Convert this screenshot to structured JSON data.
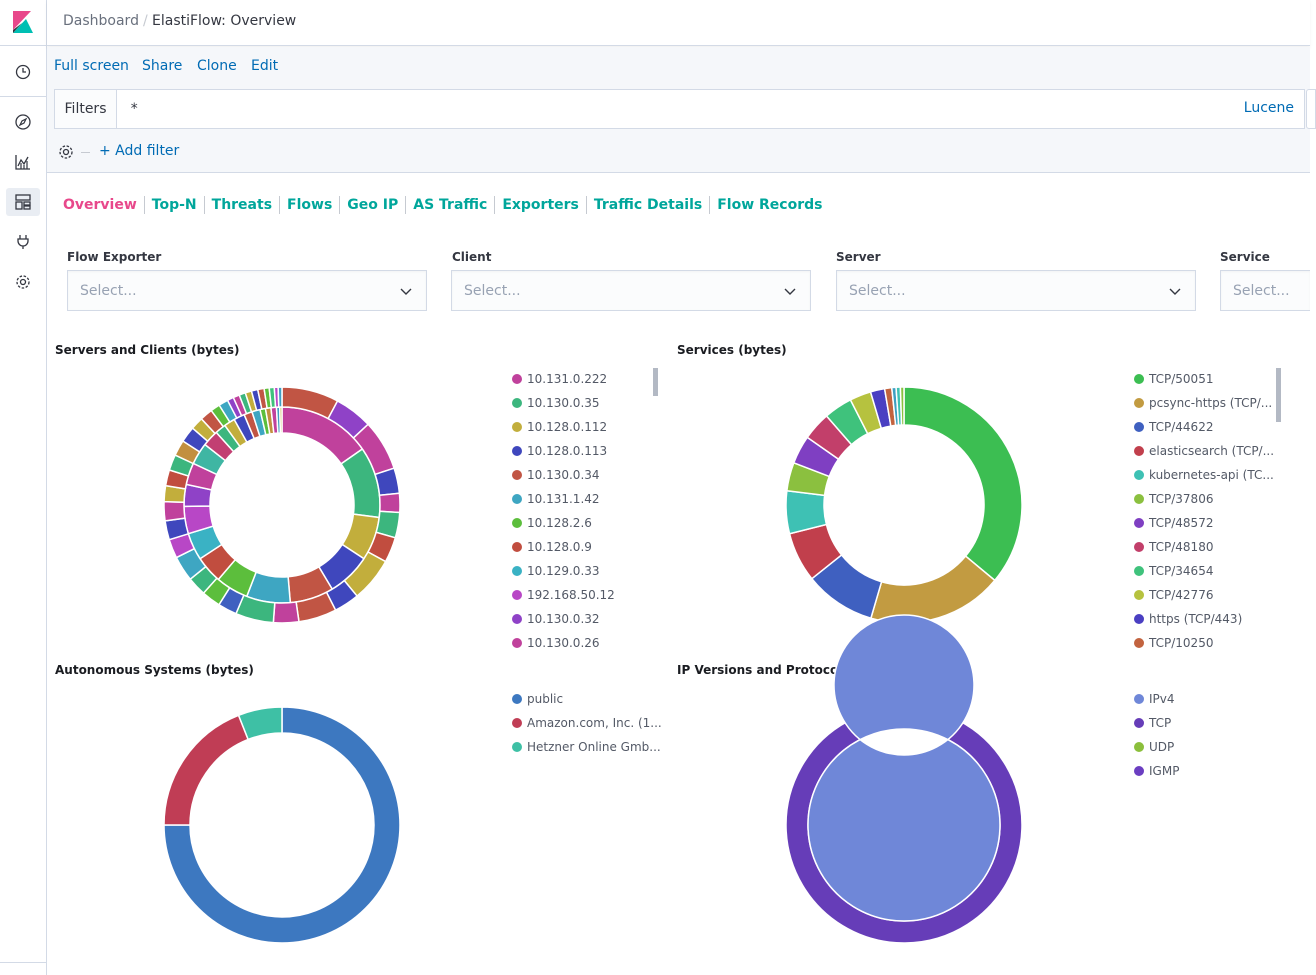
{
  "header": {
    "breadcrumb_root": "Dashboard",
    "breadcrumb_sep": "/",
    "breadcrumb_page": "ElastiFlow: Overview"
  },
  "nav_icons": [
    "clock-icon",
    "compass-icon",
    "visualize-icon",
    "dashboard-icon",
    "devtools-icon",
    "gear-icon"
  ],
  "menu": {
    "full_screen": "Full screen",
    "share": "Share",
    "clone": "Clone",
    "edit": "Edit"
  },
  "query": {
    "filters_label": "Filters",
    "value": "*",
    "language": "Lucene",
    "add_filter": "+ Add filter"
  },
  "tabs": [
    "Overview",
    "Top-N",
    "Threats",
    "Flows",
    "Geo IP",
    "AS Traffic",
    "Exporters",
    "Traffic Details",
    "Flow Records"
  ],
  "active_tab": "Overview",
  "colors": {
    "tab_active": "#e8488b",
    "tab": "#00a69b",
    "link": "#006bb4"
  },
  "controls": [
    {
      "label": "Flow Exporter",
      "placeholder": "Select..."
    },
    {
      "label": "Client",
      "placeholder": "Select..."
    },
    {
      "label": "Server",
      "placeholder": "Select..."
    },
    {
      "label": "Service",
      "placeholder": "Select..."
    }
  ],
  "panels": {
    "servers_clients": {
      "title": "Servers and Clients (bytes)",
      "legend": [
        {
          "label": "10.131.0.222",
          "color": "#c0419c"
        },
        {
          "label": "10.130.0.35",
          "color": "#3cb67e"
        },
        {
          "label": "10.128.0.112",
          "color": "#c2ae3c"
        },
        {
          "label": "10.128.0.113",
          "color": "#3f47bd"
        },
        {
          "label": "10.130.0.34",
          "color": "#c15544"
        },
        {
          "label": "10.131.1.42",
          "color": "#3ea6c2"
        },
        {
          "label": "10.128.2.6",
          "color": "#5cbe3c"
        },
        {
          "label": "10.128.0.9",
          "color": "#c14d3f"
        },
        {
          "label": "10.129.0.33",
          "color": "#3ab2c4"
        },
        {
          "label": "192.168.50.12",
          "color": "#b847c6"
        },
        {
          "label": "10.130.0.32",
          "color": "#8f42c7"
        },
        {
          "label": "10.130.0.26",
          "color": "#c0419c"
        }
      ]
    },
    "services": {
      "title": "Services (bytes)",
      "legend": [
        {
          "label": "TCP/50051",
          "color": "#3cbe52"
        },
        {
          "label": "pcsync-https (TCP/...",
          "color": "#c29b41"
        },
        {
          "label": "TCP/44622",
          "color": "#3f60c0"
        },
        {
          "label": "elasticsearch (TCP/...",
          "color": "#c13f4c"
        },
        {
          "label": "kubernetes-api (TC...",
          "color": "#3ec1b4"
        },
        {
          "label": "TCP/37806",
          "color": "#8bc03f"
        },
        {
          "label": "TCP/48572",
          "color": "#7f3fc2"
        },
        {
          "label": "TCP/48180",
          "color": "#c23f6a"
        },
        {
          "label": "TCP/34654",
          "color": "#3fc27c"
        },
        {
          "label": "TCP/42776",
          "color": "#b6c23f"
        },
        {
          "label": "https (TCP/443)",
          "color": "#4a3fc2"
        },
        {
          "label": "TCP/10250",
          "color": "#c2633f"
        }
      ]
    },
    "as": {
      "title": "Autonomous Systems (bytes)",
      "legend": [
        {
          "label": "public",
          "color": "#3d78c0"
        },
        {
          "label": "Amazon.com, Inc. (1...",
          "color": "#c03d55"
        },
        {
          "label": "Hetzner Online Gmb...",
          "color": "#3ec0a5"
        }
      ]
    },
    "ipver": {
      "title": "IP Versions and Protocols (bytes)",
      "legend": [
        {
          "label": "IPv4",
          "color": "#6f87d8"
        },
        {
          "label": "TCP",
          "color": "#663db8"
        },
        {
          "label": "UDP",
          "color": "#8bbf3c"
        },
        {
          "label": "IGMP",
          "color": "#6b3ec1"
        }
      ]
    }
  },
  "chart_data": [
    {
      "type": "pie",
      "title": "Servers and Clients (bytes)",
      "rings": [
        {
          "name": "inner",
          "values": [
            17,
            13,
            8,
            8,
            8,
            8,
            6,
            5,
            5,
            5,
            4,
            4,
            4,
            3,
            2,
            2,
            2,
            1.5,
            1.5,
            1,
            1,
            1,
            0.6,
            0.4
          ],
          "colors": [
            "#c0419c",
            "#3cb67e",
            "#c2ae3c",
            "#3f47bd",
            "#c15544",
            "#3ea6c2",
            "#5cbe3c",
            "#c14d3f",
            "#3ab2c4",
            "#b847c6",
            "#8f42c7",
            "#c0419c",
            "#3fb6a3",
            "#c23f72",
            "#3cb67e",
            "#c2ae3c",
            "#3f47bd",
            "#c15544",
            "#3ea6c2",
            "#5cbe3c",
            "#c28f3f",
            "#c0419c",
            "#3f9fc2",
            "#c2ae3c"
          ]
        },
        {
          "name": "outer",
          "values": [
            9,
            6,
            8,
            4,
            3,
            4,
            4,
            7,
            4,
            6,
            4,
            6,
            3,
            3,
            3,
            4,
            3,
            3,
            3,
            2.5,
            2.5,
            2.5,
            2.5,
            2.5,
            2,
            2,
            1.5,
            1.5,
            1,
            1,
            1,
            1,
            1,
            1,
            0.8,
            0.8,
            0.6,
            0.6
          ],
          "colors": [
            "#c15544",
            "#8f42c7",
            "#c0419c",
            "#3f47bd",
            "#c0419c",
            "#3cb67e",
            "#c14d3f",
            "#c2ae3c",
            "#3f47bd",
            "#c15544",
            "#c0419c",
            "#3cb67e",
            "#3f60c0",
            "#5cbe3c",
            "#3cb67e",
            "#3ea6c2",
            "#b847c6",
            "#3f47bd",
            "#c0419c",
            "#c2ae3c",
            "#c14d3f",
            "#3cb67e",
            "#c28f3f",
            "#3f47bd",
            "#c2ae3c",
            "#c15544",
            "#5cbe3c",
            "#3ea6c2",
            "#8f42c7",
            "#c0419c",
            "#3cb67e",
            "#c2ae3c",
            "#3f47bd",
            "#c15544",
            "#5cbe3c",
            "#3fc27c",
            "#b847c6",
            "#3f9fc2"
          ]
        }
      ]
    },
    {
      "type": "pie",
      "title": "Services (bytes)",
      "values": [
        37,
        19,
        10,
        7,
        6,
        4,
        4,
        4,
        4,
        3,
        2,
        1,
        0.6,
        0.6,
        0.5
      ],
      "colors": [
        "#3cbe52",
        "#c29b41",
        "#3f60c0",
        "#c13f4c",
        "#3ec1b4",
        "#8bc03f",
        "#7f3fc2",
        "#c23f6a",
        "#3fc27c",
        "#b6c23f",
        "#4a3fc2",
        "#c2633f",
        "#3f9fc2",
        "#3ec1b4",
        "#8bc03f"
      ]
    },
    {
      "type": "pie",
      "title": "Autonomous Systems (bytes)",
      "values": [
        75,
        19,
        6
      ],
      "colors": [
        "#3d78c0",
        "#c03d55",
        "#3ec0a5"
      ]
    },
    {
      "type": "pie",
      "title": "IP Versions and Protocols (bytes)",
      "rings": [
        {
          "name": "inner",
          "values": [
            100
          ],
          "colors": [
            "#6f87d8"
          ]
        },
        {
          "name": "outer",
          "values": [
            99.7,
            0.3
          ],
          "colors": [
            "#663db8",
            "#6b3ec1"
          ]
        }
      ]
    }
  ]
}
